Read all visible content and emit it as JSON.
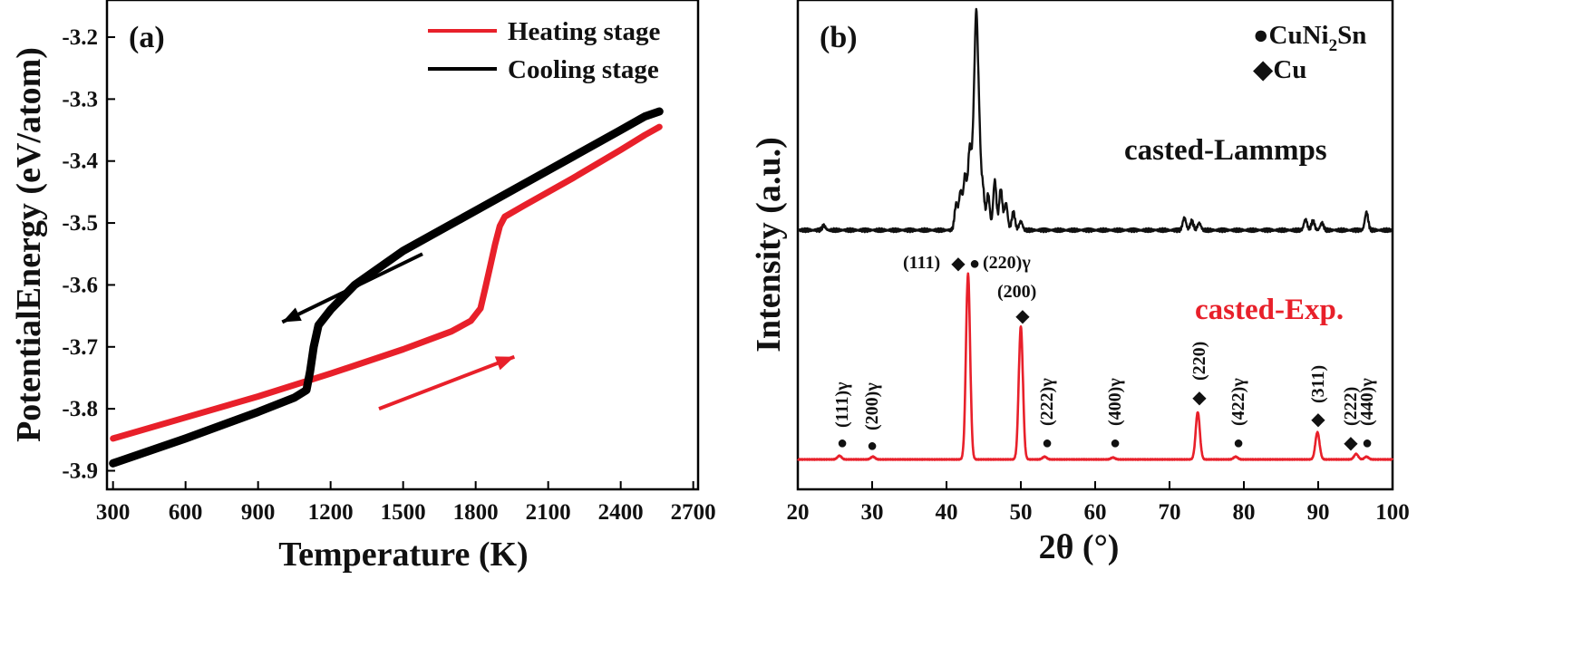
{
  "chart_data": [
    {
      "panel": "(a)",
      "type": "line",
      "xlabel": "Temperature (K)",
      "ylabel": "PotentialEnergy (eV/atom)",
      "xlim": [
        275,
        2720
      ],
      "ylim": [
        -3.93,
        -3.14
      ],
      "xticks": [
        "300",
        "600",
        "900",
        "1200",
        "1500",
        "1800",
        "2100",
        "2400",
        "2700"
      ],
      "yticks": [
        "-3.9",
        "-3.8",
        "-3.7",
        "-3.6",
        "-3.5",
        "-3.4",
        "-3.3",
        "-3.2"
      ],
      "legend": [
        {
          "label": "Heating stage",
          "color": "#e8202a"
        },
        {
          "label": "Cooling stage",
          "color": "#000000"
        }
      ],
      "series": [
        {
          "name": "Heating stage",
          "color": "#e8202a",
          "points": [
            [
              300,
              -3.848
            ],
            [
              600,
              -3.814
            ],
            [
              900,
              -3.78
            ],
            [
              1200,
              -3.743
            ],
            [
              1500,
              -3.704
            ],
            [
              1700,
              -3.675
            ],
            [
              1780,
              -3.658
            ],
            [
              1820,
              -3.638
            ],
            [
              1840,
              -3.605
            ],
            [
              1860,
              -3.57
            ],
            [
              1880,
              -3.535
            ],
            [
              1900,
              -3.505
            ],
            [
              1920,
              -3.49
            ],
            [
              2000,
              -3.472
            ],
            [
              2200,
              -3.428
            ],
            [
              2400,
              -3.382
            ],
            [
              2500,
              -3.358
            ],
            [
              2560,
              -3.345
            ]
          ]
        },
        {
          "name": "Cooling stage",
          "color": "#000000",
          "points": [
            [
              2560,
              -3.32
            ],
            [
              2500,
              -3.328
            ],
            [
              2400,
              -3.35
            ],
            [
              2100,
              -3.415
            ],
            [
              1800,
              -3.48
            ],
            [
              1500,
              -3.545
            ],
            [
              1300,
              -3.6
            ],
            [
              1200,
              -3.64
            ],
            [
              1150,
              -3.665
            ],
            [
              1130,
              -3.7
            ],
            [
              1115,
              -3.74
            ],
            [
              1100,
              -3.77
            ],
            [
              1050,
              -3.782
            ],
            [
              900,
              -3.805
            ],
            [
              600,
              -3.848
            ],
            [
              300,
              -3.888
            ]
          ]
        }
      ],
      "arrows": [
        {
          "color": "#000000",
          "from": [
            1580,
            -3.55
          ],
          "to": [
            1000,
            -3.66
          ]
        },
        {
          "color": "#e8202a",
          "from": [
            1400,
            -3.8
          ],
          "to": [
            1960,
            -3.716
          ]
        }
      ]
    },
    {
      "panel": "(b)",
      "type": "line",
      "xlabel": "2θ (°)",
      "ylabel": "Intensity (a.u.)",
      "xlim": [
        20,
        100
      ],
      "xticks": [
        "20",
        "30",
        "40",
        "50",
        "60",
        "70",
        "80",
        "90",
        "100"
      ],
      "legend": [
        {
          "symbol": "●",
          "label": "CuNi",
          "sub": "2",
          "label_end": "Sn"
        },
        {
          "symbol": "◆",
          "label": "Cu"
        }
      ],
      "series": [
        {
          "name": "casted-Lammps",
          "color": "#111111",
          "baseline": 0,
          "unit_px": 1,
          "peaks": [
            [
              23.5,
              5
            ],
            [
              41.3,
              28
            ],
            [
              41.9,
              42
            ],
            [
              42.5,
              60
            ],
            [
              43.1,
              85
            ],
            [
              43.6,
              80
            ],
            [
              44.0,
              210
            ],
            [
              44.4,
              95
            ],
            [
              44.9,
              45
            ],
            [
              45.6,
              40
            ],
            [
              46.5,
              55
            ],
            [
              47.3,
              45
            ],
            [
              48.0,
              30
            ],
            [
              49.0,
              20
            ],
            [
              50.0,
              10
            ],
            [
              72,
              14
            ],
            [
              73,
              10
            ],
            [
              74,
              8
            ],
            [
              88.3,
              12
            ],
            [
              89.3,
              10
            ],
            [
              90.5,
              8
            ],
            [
              96.5,
              20
            ]
          ]
        },
        {
          "name": "casted-Exp.",
          "color": "#e8202a",
          "baseline": 0,
          "peaks": [
            [
              25.6,
              4
            ],
            [
              30.1,
              3
            ],
            [
              42.9,
              205
            ],
            [
              50.0,
              147
            ],
            [
              53.2,
              3
            ],
            [
              62.4,
              2
            ],
            [
              73.8,
              52
            ],
            [
              78.9,
              3
            ],
            [
              89.9,
              30
            ],
            [
              95.1,
              6
            ],
            [
              96.5,
              3
            ]
          ]
        }
      ],
      "annotations": [
        {
          "text": "(111)γ",
          "marker": "●",
          "x": 25.6
        },
        {
          "text": "(200)γ",
          "marker": "●",
          "x": 30.1
        },
        {
          "text": "(111)",
          "marker": "◆",
          "x": 42.9
        },
        {
          "text": "(220)γ",
          "marker": "●",
          "x": 43.8
        },
        {
          "text": "(200)",
          "marker": "◆",
          "x": 50.0
        },
        {
          "text": "(222)γ",
          "marker": "●",
          "x": 53.2
        },
        {
          "text": "(400)γ",
          "marker": "●",
          "x": 62.4
        },
        {
          "text": "(220)",
          "marker": "◆",
          "x": 73.8
        },
        {
          "text": "(422)γ",
          "marker": "●",
          "x": 78.9
        },
        {
          "text": "(311)",
          "marker": "◆",
          "x": 89.9
        },
        {
          "text": "(222)",
          "marker": "◆",
          "x": 94.3
        },
        {
          "text": "(440)γ",
          "marker": "●",
          "x": 96.5
        }
      ],
      "series_labels": [
        "casted-Lammps",
        "casted-Exp."
      ]
    }
  ]
}
